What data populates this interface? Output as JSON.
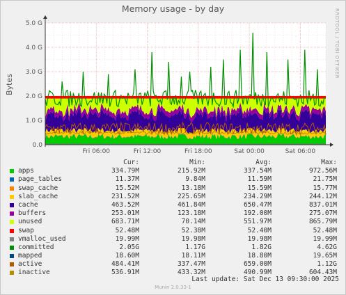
{
  "title": "Memory usage - by day",
  "ylabel": "Bytes",
  "watermark": "RRDTOOL / TOBI OETIKER",
  "legend_headers": {
    "cur": "Cur:",
    "min": "Min:",
    "avg": "Avg:",
    "max": "Max:"
  },
  "legend": [
    {
      "name": "apps",
      "color": "#00cc00",
      "cur": "334.79M",
      "min": "215.92M",
      "avg": "337.54M",
      "max": "972.56M"
    },
    {
      "name": "page_tables",
      "color": "#0066b3",
      "cur": "11.37M",
      "min": "9.84M",
      "avg": "11.59M",
      "max": "21.75M"
    },
    {
      "name": "swap_cache",
      "color": "#ff8000",
      "cur": "15.52M",
      "min": "13.18M",
      "avg": "15.59M",
      "max": "15.77M"
    },
    {
      "name": "slab_cache",
      "color": "#ffcc00",
      "cur": "231.52M",
      "min": "225.65M",
      "avg": "234.29M",
      "max": "244.12M"
    },
    {
      "name": "cache",
      "color": "#330099",
      "cur": "463.52M",
      "min": "461.84M",
      "avg": "650.47M",
      "max": "837.01M"
    },
    {
      "name": "buffers",
      "color": "#990099",
      "cur": "253.01M",
      "min": "123.18M",
      "avg": "192.00M",
      "max": "275.07M"
    },
    {
      "name": "unused",
      "color": "#ccff00",
      "cur": "683.71M",
      "min": "70.14M",
      "avg": "551.97M",
      "max": "865.79M"
    },
    {
      "name": "swap",
      "color": "#ff0000",
      "cur": "52.48M",
      "min": "52.38M",
      "avg": "52.40M",
      "max": "52.48M"
    },
    {
      "name": "vmalloc_used",
      "color": "#808080",
      "cur": "19.99M",
      "min": "19.98M",
      "avg": "19.98M",
      "max": "19.99M"
    },
    {
      "name": "committed",
      "color": "#008f00",
      "cur": "2.05G",
      "min": "1.17G",
      "avg": "1.82G",
      "max": "4.62G"
    },
    {
      "name": "mapped",
      "color": "#00487d",
      "cur": "18.60M",
      "min": "18.11M",
      "avg": "18.80M",
      "max": "19.65M"
    },
    {
      "name": "active",
      "color": "#b35a00",
      "cur": "484.41M",
      "min": "337.47M",
      "avg": "659.00M",
      "max": "1.12G"
    },
    {
      "name": "inactive",
      "color": "#b38f00",
      "cur": "536.91M",
      "min": "433.32M",
      "avg": "490.99M",
      "max": "604.43M"
    }
  ],
  "last_update": "Last update:  Sat Dec 13 09:30:00 2025",
  "footer": "Munin 2.0.33-1",
  "chart_data": {
    "type": "area",
    "title": "Memory usage - by day",
    "ylabel": "Bytes",
    "ylim": [
      0,
      5.0
    ],
    "yunit": "G",
    "yticks": [
      "0.0",
      "1.0 G",
      "2.0 G",
      "3.0 G",
      "4.0 G",
      "5.0 G"
    ],
    "ytick_values": [
      0,
      1,
      2,
      3,
      4,
      5
    ],
    "x_range_hours": [
      0,
      33
    ],
    "xticks": [
      {
        "label": "Fri 06:00",
        "hour": 6
      },
      {
        "label": "Fri 12:00",
        "hour": 12
      },
      {
        "label": "Fri 18:00",
        "hour": 18
      },
      {
        "label": "Sat 00:00",
        "hour": 24
      },
      {
        "label": "Sat 06:00",
        "hour": 30
      }
    ],
    "series_note": "stacked: apps, page_tables, swap_cache, slab_cache, cache, buffers, unused, swap; lines: vmalloc_used, committed, mapped, active, inactive",
    "stacked_avg_G": {
      "apps": 0.33,
      "page_tables": 0.011,
      "swap_cache": 0.015,
      "slab_cache": 0.23,
      "cache": 0.65,
      "buffers": 0.19,
      "unused": 0.55,
      "swap": 0.052
    },
    "committed_peaks": [
      {
        "hour": 2.0,
        "value": 2.6
      },
      {
        "hour": 4.5,
        "value": 3.0
      },
      {
        "hour": 7.5,
        "value": 2.9
      },
      {
        "hour": 10.5,
        "value": 3.1
      },
      {
        "hour": 12.5,
        "value": 3.8
      },
      {
        "hour": 14.5,
        "value": 3.4
      },
      {
        "hour": 16.0,
        "value": 2.8
      },
      {
        "hour": 17.0,
        "value": 3.0
      },
      {
        "hour": 19.5,
        "value": 3.2
      },
      {
        "hour": 21.0,
        "value": 3.5
      },
      {
        "hour": 23.0,
        "value": 3.9
      },
      {
        "hour": 24.5,
        "value": 4.6
      },
      {
        "hour": 26.0,
        "value": 3.8
      },
      {
        "hour": 28.5,
        "value": 3.5
      },
      {
        "hour": 30.5,
        "value": 3.9
      },
      {
        "hour": 32.0,
        "value": 3.1
      }
    ]
  }
}
